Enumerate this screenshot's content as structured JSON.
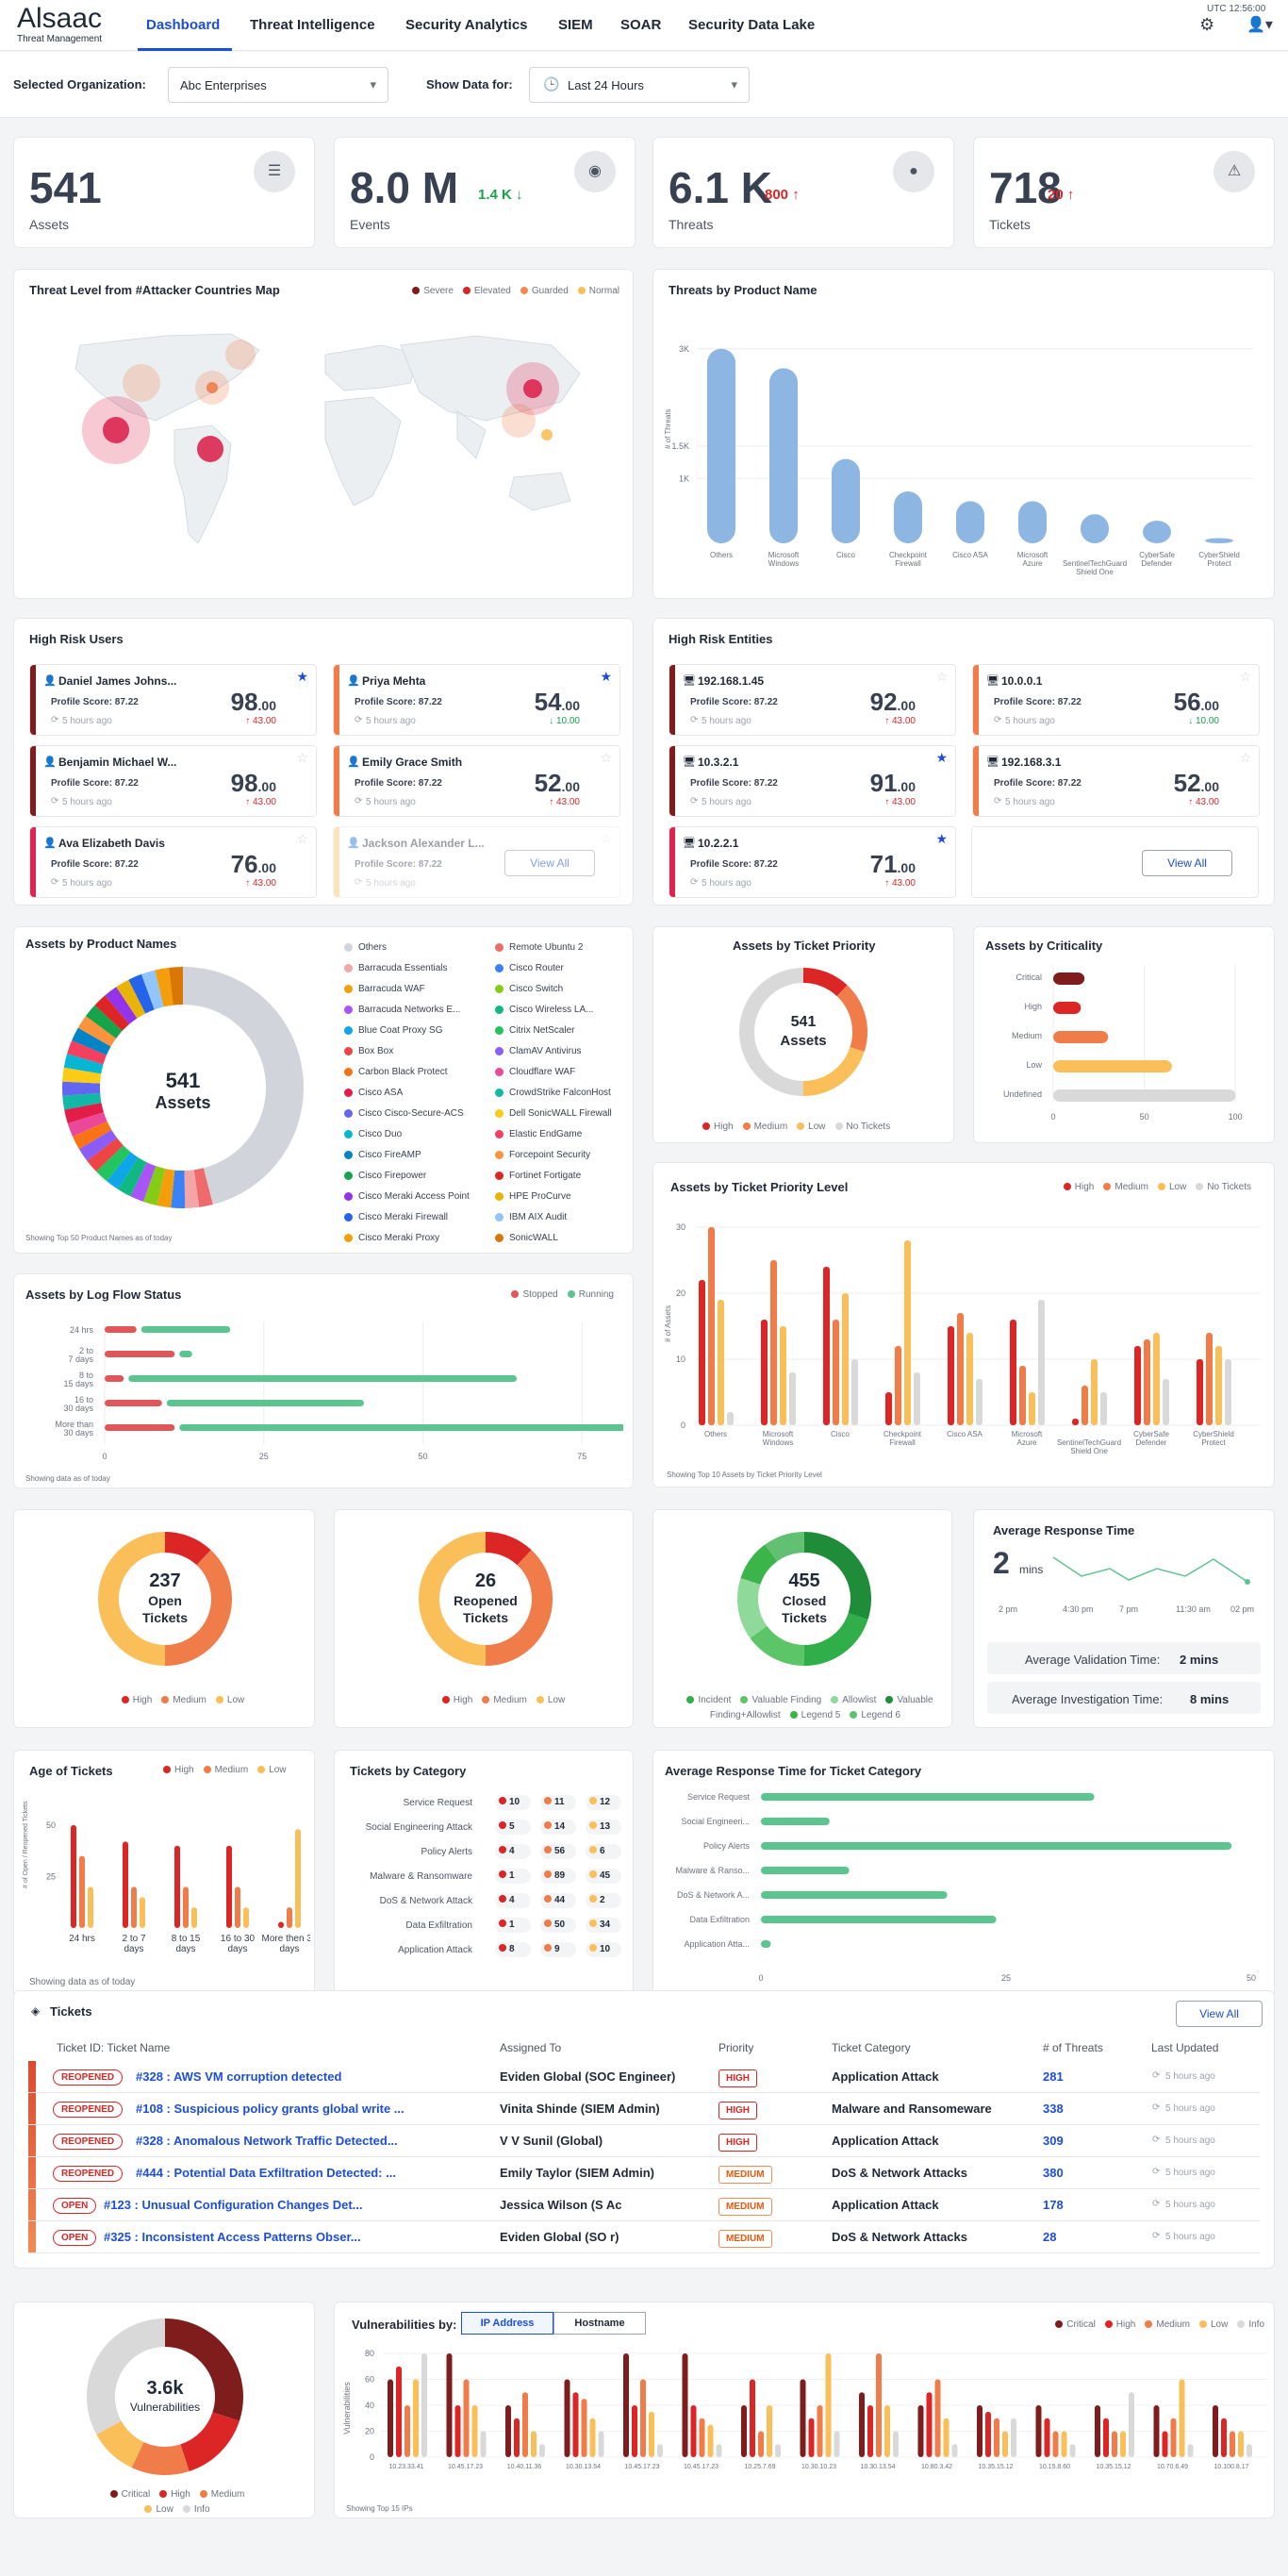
{
  "header": {
    "logo": "Alsaac",
    "sublogo": "Threat Management",
    "tabs": [
      "Dashboard",
      "Threat Intelligence",
      "Security Analytics",
      "SIEM",
      "SOAR",
      "Security Data Lake"
    ],
    "time": "UTC 12:56:00"
  },
  "filters": {
    "org_label": "Selected Organization:",
    "org_value": "Abc Enterprises",
    "show_label": "Show Data for:",
    "show_value": "Last 24 Hours"
  },
  "kpis": [
    {
      "value": "541",
      "label": "Assets",
      "delta": "",
      "icon": "list-icon"
    },
    {
      "value": "8.0 M",
      "label": "Events",
      "delta": "1.4 K ↓",
      "icon": "target-icon"
    },
    {
      "value": "6.1 K",
      "label": "Threats",
      "delta": "800 ↑",
      "icon": "bomb-icon"
    },
    {
      "value": "718",
      "label": "Tickets",
      "delta": "20 ↑",
      "icon": "warning-icon"
    }
  ],
  "map": {
    "title": "Threat Level from #Attacker Countries Map",
    "legend": [
      "Severe",
      "Elevated",
      "Guarded",
      "Normal"
    ],
    "colors": [
      "#7f1d1d",
      "#dc2626",
      "#f28b54",
      "#fbbf5a"
    ]
  },
  "threats_product": {
    "title": "Threats by Product Name",
    "ylabel": "# of Threats"
  },
  "high_risk_users": {
    "title": "High Risk Users",
    "view_all": "View All",
    "items": [
      {
        "name": "Daniel James Johns...",
        "profile": "Profile Score: 87.22",
        "time": "5 hours ago",
        "score": "98",
        "dec": ".00",
        "delta": "↑ 43.00",
        "up": true,
        "color": "#7f1d1d",
        "star": true
      },
      {
        "name": "Priya Mehta",
        "profile": "Profile Score: 87.22",
        "time": "5 hours ago",
        "score": "54",
        "dec": ".00",
        "delta": "↓ 10.00",
        "up": false,
        "color": "#f07c4a",
        "star": true
      },
      {
        "name": "Benjamin Michael W...",
        "profile": "Profile Score: 87.22",
        "time": "5 hours ago",
        "score": "98",
        "dec": ".00",
        "delta": "↑ 43.00",
        "up": true,
        "color": "#7f1d1d",
        "star": false
      },
      {
        "name": "Emily Grace Smith",
        "profile": "Profile Score: 87.22",
        "time": "5 hours ago",
        "score": "52",
        "dec": ".00",
        "delta": "↑ 43.00",
        "up": true,
        "color": "#f07c4a",
        "star": false
      },
      {
        "name": "Ava Elizabeth Davis",
        "profile": "Profile Score: 87.22",
        "time": "5 hours ago",
        "score": "76",
        "dec": ".00",
        "delta": "↑ 43.00",
        "up": true,
        "color": "#dc2650",
        "star": false
      },
      {
        "name": "Jackson Alexander L...",
        "profile": "Profile Score: 87.22",
        "time": "5 hours ago",
        "score": "",
        "dec": "",
        "delta": "",
        "up": true,
        "color": "#fbbf6a",
        "star": false
      }
    ]
  },
  "high_risk_entities": {
    "title": "High Risk Entities",
    "view_all": "View All",
    "items": [
      {
        "name": "192.168.1.45",
        "profile": "Profile Score: 87.22",
        "time": "5 hours ago",
        "score": "92",
        "dec": ".00",
        "delta": "↑ 43.00",
        "up": true,
        "color": "#7f1d1d",
        "star": false
      },
      {
        "name": "10.0.0.1",
        "profile": "Profile Score: 87.22",
        "time": "5 hours ago",
        "score": "56",
        "dec": ".00",
        "delta": "↓ 10.00",
        "up": false,
        "color": "#f07c4a",
        "star": false
      },
      {
        "name": "10.3.2.1",
        "profile": "Profile Score: 87.22",
        "time": "5 hours ago",
        "score": "91",
        "dec": ".00",
        "delta": "↑ 43.00",
        "up": true,
        "color": "#7f1d1d",
        "star": true
      },
      {
        "name": "192.168.3.1",
        "profile": "Profile Score: 87.22",
        "time": "5 hours ago",
        "score": "52",
        "dec": ".00",
        "delta": "↑ 43.00",
        "up": true,
        "color": "#f07c4a",
        "star": false
      },
      {
        "name": "10.2.2.1",
        "profile": "Profile Score: 87.22",
        "time": "5 hours ago",
        "score": "71",
        "dec": ".00",
        "delta": "↑ 43.00",
        "up": true,
        "color": "#dc2650",
        "star": true
      }
    ]
  },
  "assets_product": {
    "title": "Assets by Product Names",
    "center_num": "541",
    "center_lab": "Assets",
    "note": "Showing Top 50 Product Names as of today",
    "names": [
      "Others",
      "Remote Ubuntu 2",
      "Barracuda Essentials",
      "Cisco Router",
      "Barracuda WAF",
      "Cisco Switch",
      "Barracuda Networks E...",
      "Cisco Wireless LA...",
      "Blue Coat Proxy SG",
      "Citrix NetScaler",
      "Box Box",
      "ClamAV Antivirus",
      "Carbon Black Protect",
      "Cloudflare WAF",
      "Cisco ASA",
      "CrowdStrike FalconHost",
      "Cisco Cisco-Secure-ACS",
      "Dell SonicWALL Firewall",
      "Cisco Duo",
      "Elastic EndGame",
      "Cisco FireAMP",
      "Forcepoint Security",
      "Cisco Firepower",
      "Fortinet Fortigate",
      "Cisco Meraki Access Point",
      "HPE ProCurve",
      "Cisco Meraki Firewall",
      "IBM AIX Audit",
      "Cisco Meraki Proxy",
      "SonicWALL"
    ],
    "colors": [
      "#d1d5db",
      "#ef6b6b",
      "#f4a6a6",
      "#3b82f6",
      "#f59e0b",
      "#84cc16",
      "#a855f7",
      "#10b981",
      "#0ea5e9",
      "#22c55e",
      "#ef4444",
      "#8b5cf6",
      "#f97316",
      "#ec4899",
      "#e11d48",
      "#14b8a6",
      "#6366f1",
      "#facc15",
      "#06b6d4",
      "#f43f5e",
      "#0284c7",
      "#fb923c",
      "#16a34a",
      "#dc2626",
      "#9333ea",
      "#eab308",
      "#2563eb",
      "#93c5fd",
      "#f59e0b",
      "#d97706"
    ]
  },
  "ticket_priority": {
    "title": "Assets by Ticket Priority",
    "center_num": "541",
    "center_lab": "Assets",
    "legend": [
      "High",
      "Medium",
      "Low",
      "No Tickets"
    ]
  },
  "criticality": {
    "title": "Assets by Criticality",
    "cats": [
      "Critical",
      "High",
      "Medium",
      "Low",
      "Undefined"
    ],
    "ticks": [
      "0",
      "50",
      "100"
    ]
  },
  "ticket_priority_level": {
    "title": "Assets by Ticket Priority Level",
    "ylabel": "# of Assets",
    "note": "Showing Top 10 Assets by Ticket Priority Level",
    "legend": [
      "High",
      "Medium",
      "Low",
      "No Tickets"
    ]
  },
  "log_flow": {
    "title": "Assets by Log Flow Status",
    "legend": [
      "Stopped",
      "Running"
    ],
    "note": "Showing data as of today"
  },
  "donuts": [
    {
      "num": "237",
      "l1": "Open",
      "l2": "Tickets",
      "legend": [
        "High",
        "Medium",
        "Low"
      ]
    },
    {
      "num": "26",
      "l1": "Reopened",
      "l2": "Tickets",
      "legend": [
        "High",
        "Medium",
        "Low"
      ]
    },
    {
      "num": "455",
      "l1": "Closed",
      "l2": "Tickets",
      "legend": [
        "Incident",
        "Valuable Finding",
        "Allowlist",
        "Valuable Finding+Allowlist",
        "Legend 5",
        "Legend 6"
      ]
    }
  ],
  "response": {
    "title": "Average Response Time",
    "value": "2",
    "unit": "mins",
    "xticks": [
      "2 pm",
      "4:30 pm",
      "7 pm",
      "11:30 am",
      "02 pm"
    ],
    "validation": "Average Validation Time:",
    "validation_val": "2 mins",
    "investigation": "Average Investigation Time:",
    "investigation_val": "8 mins"
  },
  "age": {
    "title": "Age of Tickets",
    "legend": [
      "High",
      "Medium",
      "Low"
    ],
    "ylabel": "# of Open / Reopened Tickets",
    "note": "Showing data as of today"
  },
  "category": {
    "title": "Tickets by Category"
  },
  "avg_cat": {
    "title": "Average Response Time for Ticket Category"
  },
  "tickets": {
    "title": "Tickets",
    "view_all": "View All",
    "headers": [
      "Ticket ID: Ticket Name",
      "Assigned To",
      "Priority",
      "Ticket Category",
      "# of Threats",
      "Last Updated"
    ],
    "rows": [
      {
        "status": "REOPENED",
        "name": "#328 : AWS VM corruption detected",
        "assigned": "Eviden Global (SOC Engineer)",
        "priority": "HIGH",
        "category": "Application Attack",
        "threats": "281",
        "updated": "5 hours ago"
      },
      {
        "status": "REOPENED",
        "name": "#108 : Suspicious policy grants global write ...",
        "assigned": "Vinita Shinde (SIEM Admin)",
        "priority": "HIGH",
        "category": "Malware and Ransomeware",
        "threats": "338",
        "updated": "5 hours ago"
      },
      {
        "status": "REOPENED",
        "name": "#328 : Anomalous Network Traffic Detected...",
        "assigned": "V V Sunil (Global)",
        "priority": "HIGH",
        "category": "Application Attack",
        "threats": "309",
        "updated": "5 hours ago"
      },
      {
        "status": "REOPENED",
        "name": "#444 : Potential Data Exfiltration Detected: ...",
        "assigned": "Emily Taylor (SIEM Admin)",
        "priority": "MEDIUM",
        "category": "DoS & Network Attacks",
        "threats": "380",
        "updated": "5 hours ago"
      },
      {
        "status": "OPEN",
        "name": "#123 : Unusual Configuration Changes Det...",
        "assigned": "Jessica Wilson (S      Ac",
        "priority": "MEDIUM",
        "category": "Application Attack",
        "threats": "178",
        "updated": "5 hours ago"
      },
      {
        "status": "OPEN",
        "name": "#325 : Inconsistent Access Patterns Obser...",
        "assigned": "Eviden Global (SO        r)",
        "priority": "MEDIUM",
        "category": "DoS & Network Attacks",
        "threats": "28",
        "updated": "5 hours ago"
      }
    ]
  },
  "vuln": {
    "center_num": "3.6k",
    "center_lab": "Vulnerabilities",
    "legend": [
      "Critical",
      "High",
      "Medium",
      "Low",
      "Info"
    ],
    "by": "Vulnerabilities by:",
    "tab1": "IP Address",
    "tab2": "Hostname",
    "ylabel": "Vulnerabilities",
    "note": "Showing Top 15 IPs"
  },
  "chart_data": [
    {
      "type": "bar",
      "title": "Threats by Product Name",
      "categories": [
        "Others",
        "Microsoft Windows",
        "Cisco",
        "Checkpoint Firewall",
        "Cisco ASA",
        "Microsoft Azure",
        "SentinelTechGuard Shield One",
        "CyberSafe Defender",
        "CyberShield Protect"
      ],
      "values": [
        3000,
        2700,
        1300,
        800,
        650,
        650,
        450,
        350,
        80
      ],
      "yticks": [
        "1K",
        "1.5K",
        "3K"
      ],
      "ylabel": "# of Threats"
    },
    {
      "type": "bar",
      "title": "Assets by Ticket Priority Level",
      "categories": [
        "Others",
        "Microsoft Windows",
        "Cisco",
        "Checkpoint Firewall",
        "Cisco ASA",
        "Microsoft Azure",
        "SentinelTechGuard Shield One",
        "CyberSafe Defender",
        "CyberShield Protect"
      ],
      "series": [
        {
          "name": "High",
          "values": [
            22,
            16,
            24,
            5,
            15,
            16,
            1,
            12,
            10
          ]
        },
        {
          "name": "Medium",
          "values": [
            30,
            25,
            16,
            12,
            17,
            9,
            6,
            13,
            14
          ]
        },
        {
          "name": "Low",
          "values": [
            19,
            15,
            20,
            28,
            14,
            5,
            10,
            14,
            12
          ]
        },
        {
          "name": "No Tickets",
          "values": [
            2,
            8,
            10,
            8,
            7,
            19,
            5,
            7,
            10
          ]
        }
      ],
      "ylim": [
        0,
        30
      ]
    },
    {
      "type": "bar",
      "title": "Assets by Log Flow Status",
      "categories": [
        "24 hrs",
        "2 to 7 days",
        "8 to 15 days",
        "16 to 30 days",
        "More than 30 days"
      ],
      "series": [
        {
          "name": "Stopped",
          "values": [
            5,
            11,
            3,
            9,
            11
          ]
        },
        {
          "name": "Running",
          "values": [
            14,
            2,
            61,
            31,
            75
          ]
        }
      ],
      "xlim": [
        0,
        75
      ]
    },
    {
      "type": "bar",
      "title": "Assets by Criticality",
      "categories": [
        "Critical",
        "High",
        "Medium",
        "Low",
        "Undefined"
      ],
      "values": [
        12,
        10,
        25,
        60,
        95
      ],
      "xlim": [
        0,
        100
      ]
    },
    {
      "type": "pie",
      "title": "Assets by Ticket Priority",
      "labels": [
        "High",
        "Medium",
        "Low",
        "No Tickets"
      ],
      "values": [
        12,
        18,
        20,
        50
      ]
    },
    {
      "type": "bar",
      "title": "Age of Tickets",
      "categories": [
        "24 hrs",
        "2 to 7 days",
        "8 to 15 days",
        "16 to 30 days",
        "More then 30 days"
      ],
      "series": [
        {
          "name": "High",
          "values": [
            50,
            42,
            40,
            40,
            3
          ]
        },
        {
          "name": "Medium",
          "values": [
            35,
            20,
            20,
            20,
            10
          ]
        },
        {
          "name": "Low",
          "values": [
            20,
            15,
            10,
            10,
            48
          ]
        }
      ],
      "yticks": [
        "25",
        "50"
      ]
    },
    {
      "type": "table",
      "title": "Tickets by Category",
      "rows": [
        "Service Request",
        "Social Engineering Attack",
        "Policy Alerts",
        "Malware & Ransomware",
        "DoS & Network Attack",
        "Data Exfiltration",
        "Application Attack"
      ],
      "high": [
        "10",
        "5",
        "4",
        "1",
        "4",
        "1",
        "8"
      ],
      "medium": [
        "11",
        "14",
        "56",
        "89",
        "44",
        "50",
        "9"
      ],
      "low": [
        "12",
        "13",
        "6",
        "45",
        "2",
        "34",
        "10"
      ]
    },
    {
      "type": "bar",
      "title": "Average Response Time for Ticket Category",
      "categories": [
        "Service Request",
        "Social Engineeri...",
        "Policy Alerts",
        "Malware & Ranso...",
        "DoS & Network A...",
        "Data Exfiltration",
        "Application Atta..."
      ],
      "values": [
        34,
        7,
        48,
        9,
        19,
        24,
        1
      ],
      "xlim": [
        0,
        50
      ]
    },
    {
      "type": "pie",
      "title": "Vulnerabilities",
      "labels": [
        "Critical",
        "High",
        "Medium",
        "Low",
        "Info"
      ],
      "values": [
        30,
        15,
        12,
        10,
        33
      ]
    },
    {
      "type": "bar",
      "title": "Vulnerabilities by IP Address",
      "categories": [
        "10.23.33.41",
        "10.45.17.23",
        "10.40.11.36",
        "10.30.13.54",
        "10.45.17.23",
        "10.45.17.23",
        "10.25.7.69",
        "10.30.10.23",
        "10.30.13.54",
        "10.80.3.42",
        "10.35.15.12",
        "10.15.8.60",
        "10.35.15.12",
        "10.70.6.49",
        "10.100.8.17"
      ],
      "series": [
        {
          "name": "Critical",
          "values": [
            60,
            80,
            40,
            60,
            80,
            80,
            40,
            60,
            50,
            40,
            40,
            40,
            40,
            40,
            40
          ]
        },
        {
          "name": "High",
          "values": [
            70,
            40,
            30,
            50,
            40,
            40,
            60,
            30,
            40,
            50,
            35,
            30,
            30,
            20,
            30
          ]
        },
        {
          "name": "Medium",
          "values": [
            40,
            60,
            50,
            45,
            60,
            30,
            20,
            40,
            80,
            60,
            30,
            20,
            20,
            30,
            20
          ]
        },
        {
          "name": "Low",
          "values": [
            60,
            40,
            20,
            30,
            35,
            25,
            40,
            80,
            40,
            30,
            20,
            20,
            20,
            60,
            20
          ]
        },
        {
          "name": "Info",
          "values": [
            80,
            20,
            10,
            20,
            10,
            10,
            10,
            20,
            20,
            10,
            30,
            10,
            50,
            10,
            10
          ]
        }
      ],
      "ylim": [
        0,
        80
      ]
    }
  ]
}
